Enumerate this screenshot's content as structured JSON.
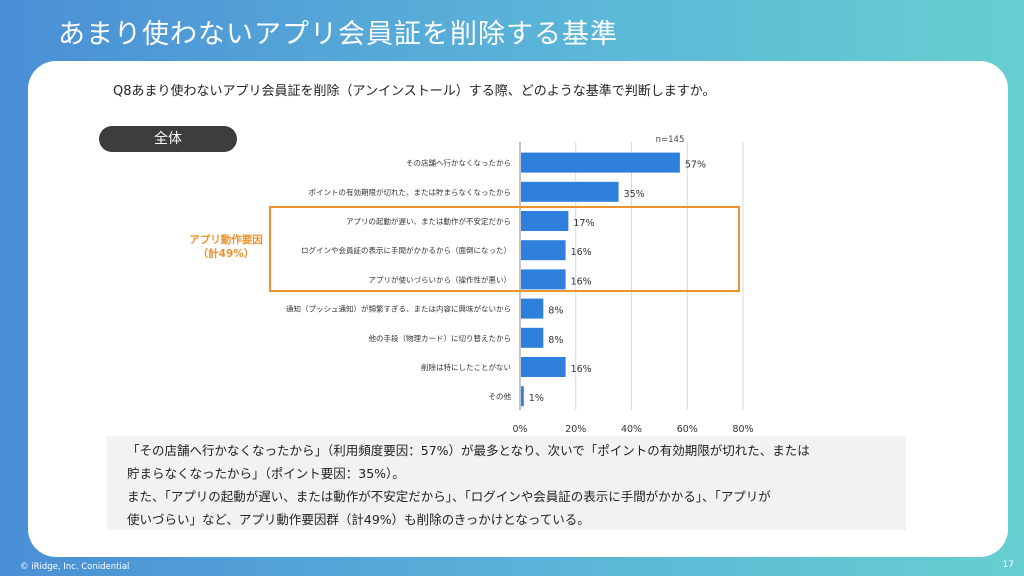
{
  "slide": {
    "title": "あまり使わないアプリ会員証を削除する基準",
    "question": "Q8あまり使わないアプリ会員証を削除（アンインストール）する際、どのような基準で判断しますか。",
    "segment_label": "全体",
    "group_label_line1": "アプリ動作要因",
    "group_label_line2": "（計49%）",
    "summary_lines": [
      "「その店舗へ行かなくなったから」（利用頻度要因：57%）が最多となり、次いで「ポイントの有効期限が切れた、または",
      "貯まらなくなったから」（ポイント要因：35%）。",
      "また、「アプリの起動が遅い、または動作が不安定だから」、「ログインや会員証の表示に手間がかかる」、「アプリが",
      "使いづらい」など、アプリ動作要因群（計49%）も削除のきっかけとなっている。"
    ],
    "footer_copyright": "© iRidge, Inc. Conidential",
    "page_number": "17"
  },
  "colors": {
    "bar": "#2f80dc",
    "accent": "#f0922b"
  },
  "chart_data": {
    "type": "bar",
    "orientation": "horizontal",
    "n_label": "n=145",
    "categories": [
      "その店舗へ行かなくなったから",
      "ポイントの有効期限が切れた、または貯まらなくなったから",
      "アプリの起動が遅い、または動作が不安定だから",
      "ログインや会員証の表示に手間がかかるから（面倒になった）",
      "アプリが使いづらいから（操作性が悪い）",
      "通知（プッシュ通知）が頻繁すぎる、または内容に興味がないから",
      "他の手段（物理カード）に切り替えたから",
      "削除は特にしたことがない",
      "その他"
    ],
    "values": [
      57,
      35,
      17,
      16,
      16,
      8,
      8,
      16,
      1
    ],
    "value_labels": [
      "57%",
      "35%",
      "17%",
      "16%",
      "16%",
      "8%",
      "8%",
      "16%",
      "1%"
    ],
    "xlim": [
      0,
      80
    ],
    "xticks": [
      "0%",
      "20%",
      "40%",
      "60%",
      "80%"
    ],
    "grid": true,
    "title": "",
    "xlabel": "",
    "ylabel": ""
  }
}
